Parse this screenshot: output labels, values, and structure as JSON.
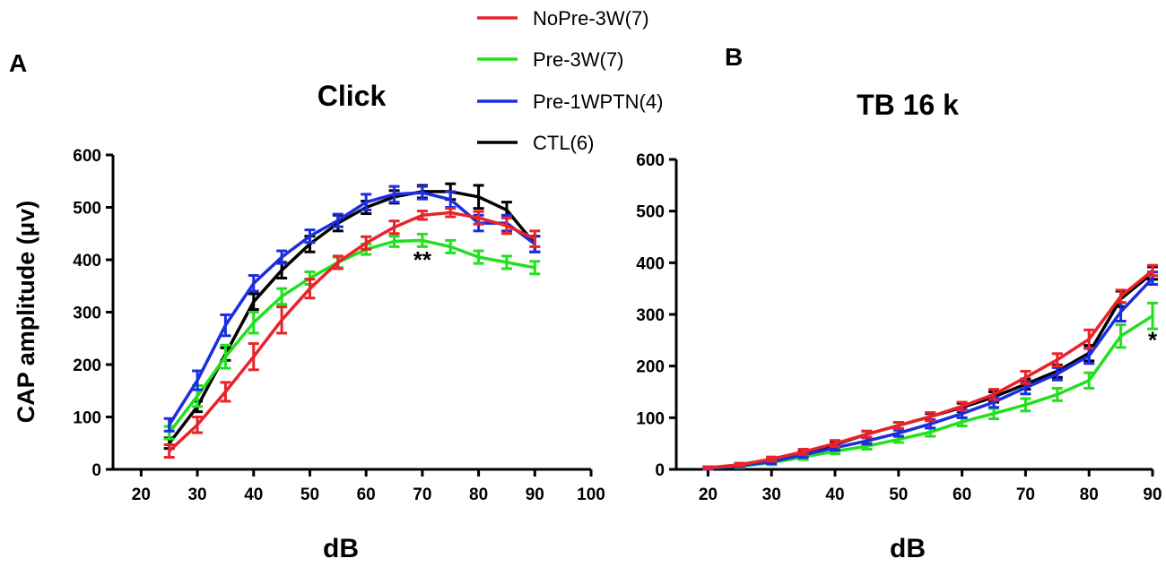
{
  "legend": [
    {
      "label": "NoPre-3W(7)",
      "color": "#e8232a"
    },
    {
      "label": "Pre-3W(7)",
      "color": "#22e01e"
    },
    {
      "label": "Pre-1WPTN(4)",
      "color": "#1b2ee0"
    },
    {
      "label": "CTL(6)",
      "color": "#000000"
    }
  ],
  "chart_data": [
    {
      "type": "line",
      "panel_label": "A",
      "title": "Click",
      "xlabel": "dB",
      "ylabel": "CAP amplitude (μv)",
      "xlim": [
        15,
        100
      ],
      "ylim": [
        0,
        600
      ],
      "xticks": [
        20,
        30,
        40,
        50,
        60,
        70,
        80,
        90,
        100
      ],
      "yticks": [
        0,
        100,
        200,
        300,
        400,
        500,
        600
      ],
      "x": [
        25,
        30,
        35,
        40,
        45,
        50,
        55,
        60,
        65,
        70,
        75,
        80,
        85,
        90
      ],
      "annotation": {
        "text": "**",
        "x": 70,
        "y": 385
      },
      "series": [
        {
          "name": "CTL(6)",
          "color": "#000000",
          "values": [
            50,
            120,
            220,
            320,
            380,
            430,
            470,
            500,
            520,
            530,
            530,
            520,
            495,
            430
          ],
          "errors": [
            10,
            10,
            12,
            15,
            15,
            15,
            15,
            12,
            12,
            12,
            15,
            22,
            15,
            15
          ]
        },
        {
          "name": "Pre-3W(7)",
          "color": "#22e01e",
          "values": [
            70,
            140,
            215,
            280,
            330,
            365,
            395,
            420,
            435,
            437,
            425,
            405,
            395,
            385
          ],
          "errors": [
            12,
            20,
            22,
            20,
            15,
            12,
            10,
            10,
            10,
            12,
            12,
            12,
            12,
            12
          ]
        },
        {
          "name": "Pre-1WPTN(4)",
          "color": "#1b2ee0",
          "values": [
            85,
            170,
            275,
            355,
            405,
            445,
            475,
            510,
            525,
            528,
            515,
            470,
            470,
            430
          ],
          "errors": [
            12,
            18,
            20,
            15,
            12,
            12,
            12,
            15,
            15,
            12,
            15,
            15,
            15,
            15
          ]
        },
        {
          "name": "NoPre-3W(7)",
          "color": "#e8232a",
          "values": [
            35,
            85,
            148,
            215,
            285,
            345,
            395,
            432,
            462,
            485,
            490,
            480,
            465,
            440
          ],
          "errors": [
            12,
            15,
            18,
            25,
            25,
            18,
            12,
            12,
            12,
            8,
            8,
            12,
            15,
            15
          ]
        }
      ]
    },
    {
      "type": "line",
      "panel_label": "B",
      "title": "TB 16 k",
      "xlabel": "dB",
      "ylabel": "",
      "xlim": [
        15,
        90
      ],
      "ylim": [
        0,
        600
      ],
      "xticks": [
        20,
        30,
        40,
        50,
        60,
        70,
        80,
        90
      ],
      "yticks": [
        0,
        100,
        200,
        300,
        400,
        500,
        600
      ],
      "x": [
        20,
        25,
        30,
        35,
        40,
        45,
        50,
        55,
        60,
        65,
        70,
        75,
        80,
        85,
        90
      ],
      "annotation": {
        "text": "*",
        "x": 90,
        "y": 235
      },
      "series": [
        {
          "name": "CTL(6)",
          "color": "#000000",
          "values": [
            3,
            8,
            18,
            32,
            48,
            68,
            85,
            102,
            120,
            140,
            165,
            190,
            225,
            330,
            380
          ],
          "errors": [
            2,
            3,
            4,
            5,
            6,
            6,
            6,
            6,
            8,
            10,
            10,
            12,
            15,
            15,
            12
          ]
        },
        {
          "name": "Pre-3W(7)",
          "color": "#22e01e",
          "values": [
            2,
            6,
            13,
            24,
            35,
            45,
            58,
            72,
            92,
            108,
            125,
            145,
            172,
            258,
            297
          ],
          "errors": [
            2,
            3,
            4,
            5,
            5,
            6,
            6,
            8,
            8,
            10,
            12,
            12,
            15,
            22,
            25
          ]
        },
        {
          "name": "Pre-1WPTN(4)",
          "color": "#1b2ee0",
          "values": [
            2,
            7,
            15,
            28,
            42,
            55,
            70,
            88,
            108,
            130,
            158,
            185,
            220,
            305,
            370
          ],
          "errors": [
            2,
            3,
            4,
            5,
            5,
            6,
            6,
            8,
            8,
            10,
            12,
            12,
            15,
            18,
            12
          ]
        },
        {
          "name": "NoPre-3W(7)",
          "color": "#e8232a",
          "values": [
            3,
            9,
            20,
            34,
            50,
            68,
            85,
            102,
            122,
            145,
            178,
            212,
            252,
            335,
            385
          ],
          "errors": [
            2,
            3,
            4,
            5,
            6,
            6,
            6,
            8,
            8,
            10,
            12,
            12,
            18,
            12,
            10
          ]
        }
      ]
    }
  ]
}
